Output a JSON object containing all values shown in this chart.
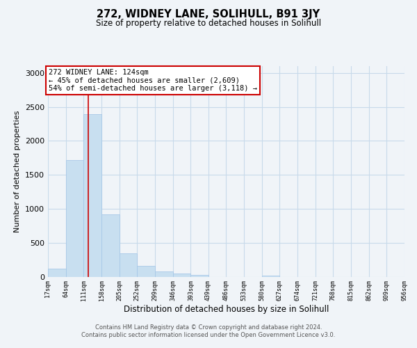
{
  "title": "272, WIDNEY LANE, SOLIHULL, B91 3JY",
  "subtitle": "Size of property relative to detached houses in Solihull",
  "xlabel": "Distribution of detached houses by size in Solihull",
  "ylabel": "Number of detached properties",
  "bar_edges": [
    17,
    64,
    111,
    158,
    205,
    252,
    299,
    346,
    393,
    439,
    486,
    533,
    580,
    627,
    674,
    721,
    768,
    815,
    862,
    909,
    956
  ],
  "bar_heights": [
    120,
    1720,
    2390,
    920,
    340,
    155,
    75,
    45,
    30,
    0,
    0,
    0,
    20,
    0,
    0,
    0,
    0,
    0,
    0,
    0
  ],
  "bar_color": "#c8dff0",
  "bar_edgecolor": "#a8c8e8",
  "property_line_x": 124,
  "property_line_color": "#cc0000",
  "annotation_title": "272 WIDNEY LANE: 124sqm",
  "annotation_line1": "← 45% of detached houses are smaller (2,609)",
  "annotation_line2": "54% of semi-detached houses are larger (3,118) →",
  "annotation_box_color": "#ffffff",
  "annotation_box_edgecolor": "#cc0000",
  "ylim": [
    0,
    3100
  ],
  "yticks": [
    0,
    500,
    1000,
    1500,
    2000,
    2500,
    3000
  ],
  "tick_labels": [
    "17sqm",
    "64sqm",
    "111sqm",
    "158sqm",
    "205sqm",
    "252sqm",
    "299sqm",
    "346sqm",
    "393sqm",
    "439sqm",
    "486sqm",
    "533sqm",
    "580sqm",
    "627sqm",
    "674sqm",
    "721sqm",
    "768sqm",
    "815sqm",
    "862sqm",
    "909sqm",
    "956sqm"
  ],
  "footer_line1": "Contains HM Land Registry data © Crown copyright and database right 2024.",
  "footer_line2": "Contains public sector information licensed under the Open Government Licence v3.0.",
  "background_color": "#f0f4f8",
  "grid_color": "#c8daea"
}
